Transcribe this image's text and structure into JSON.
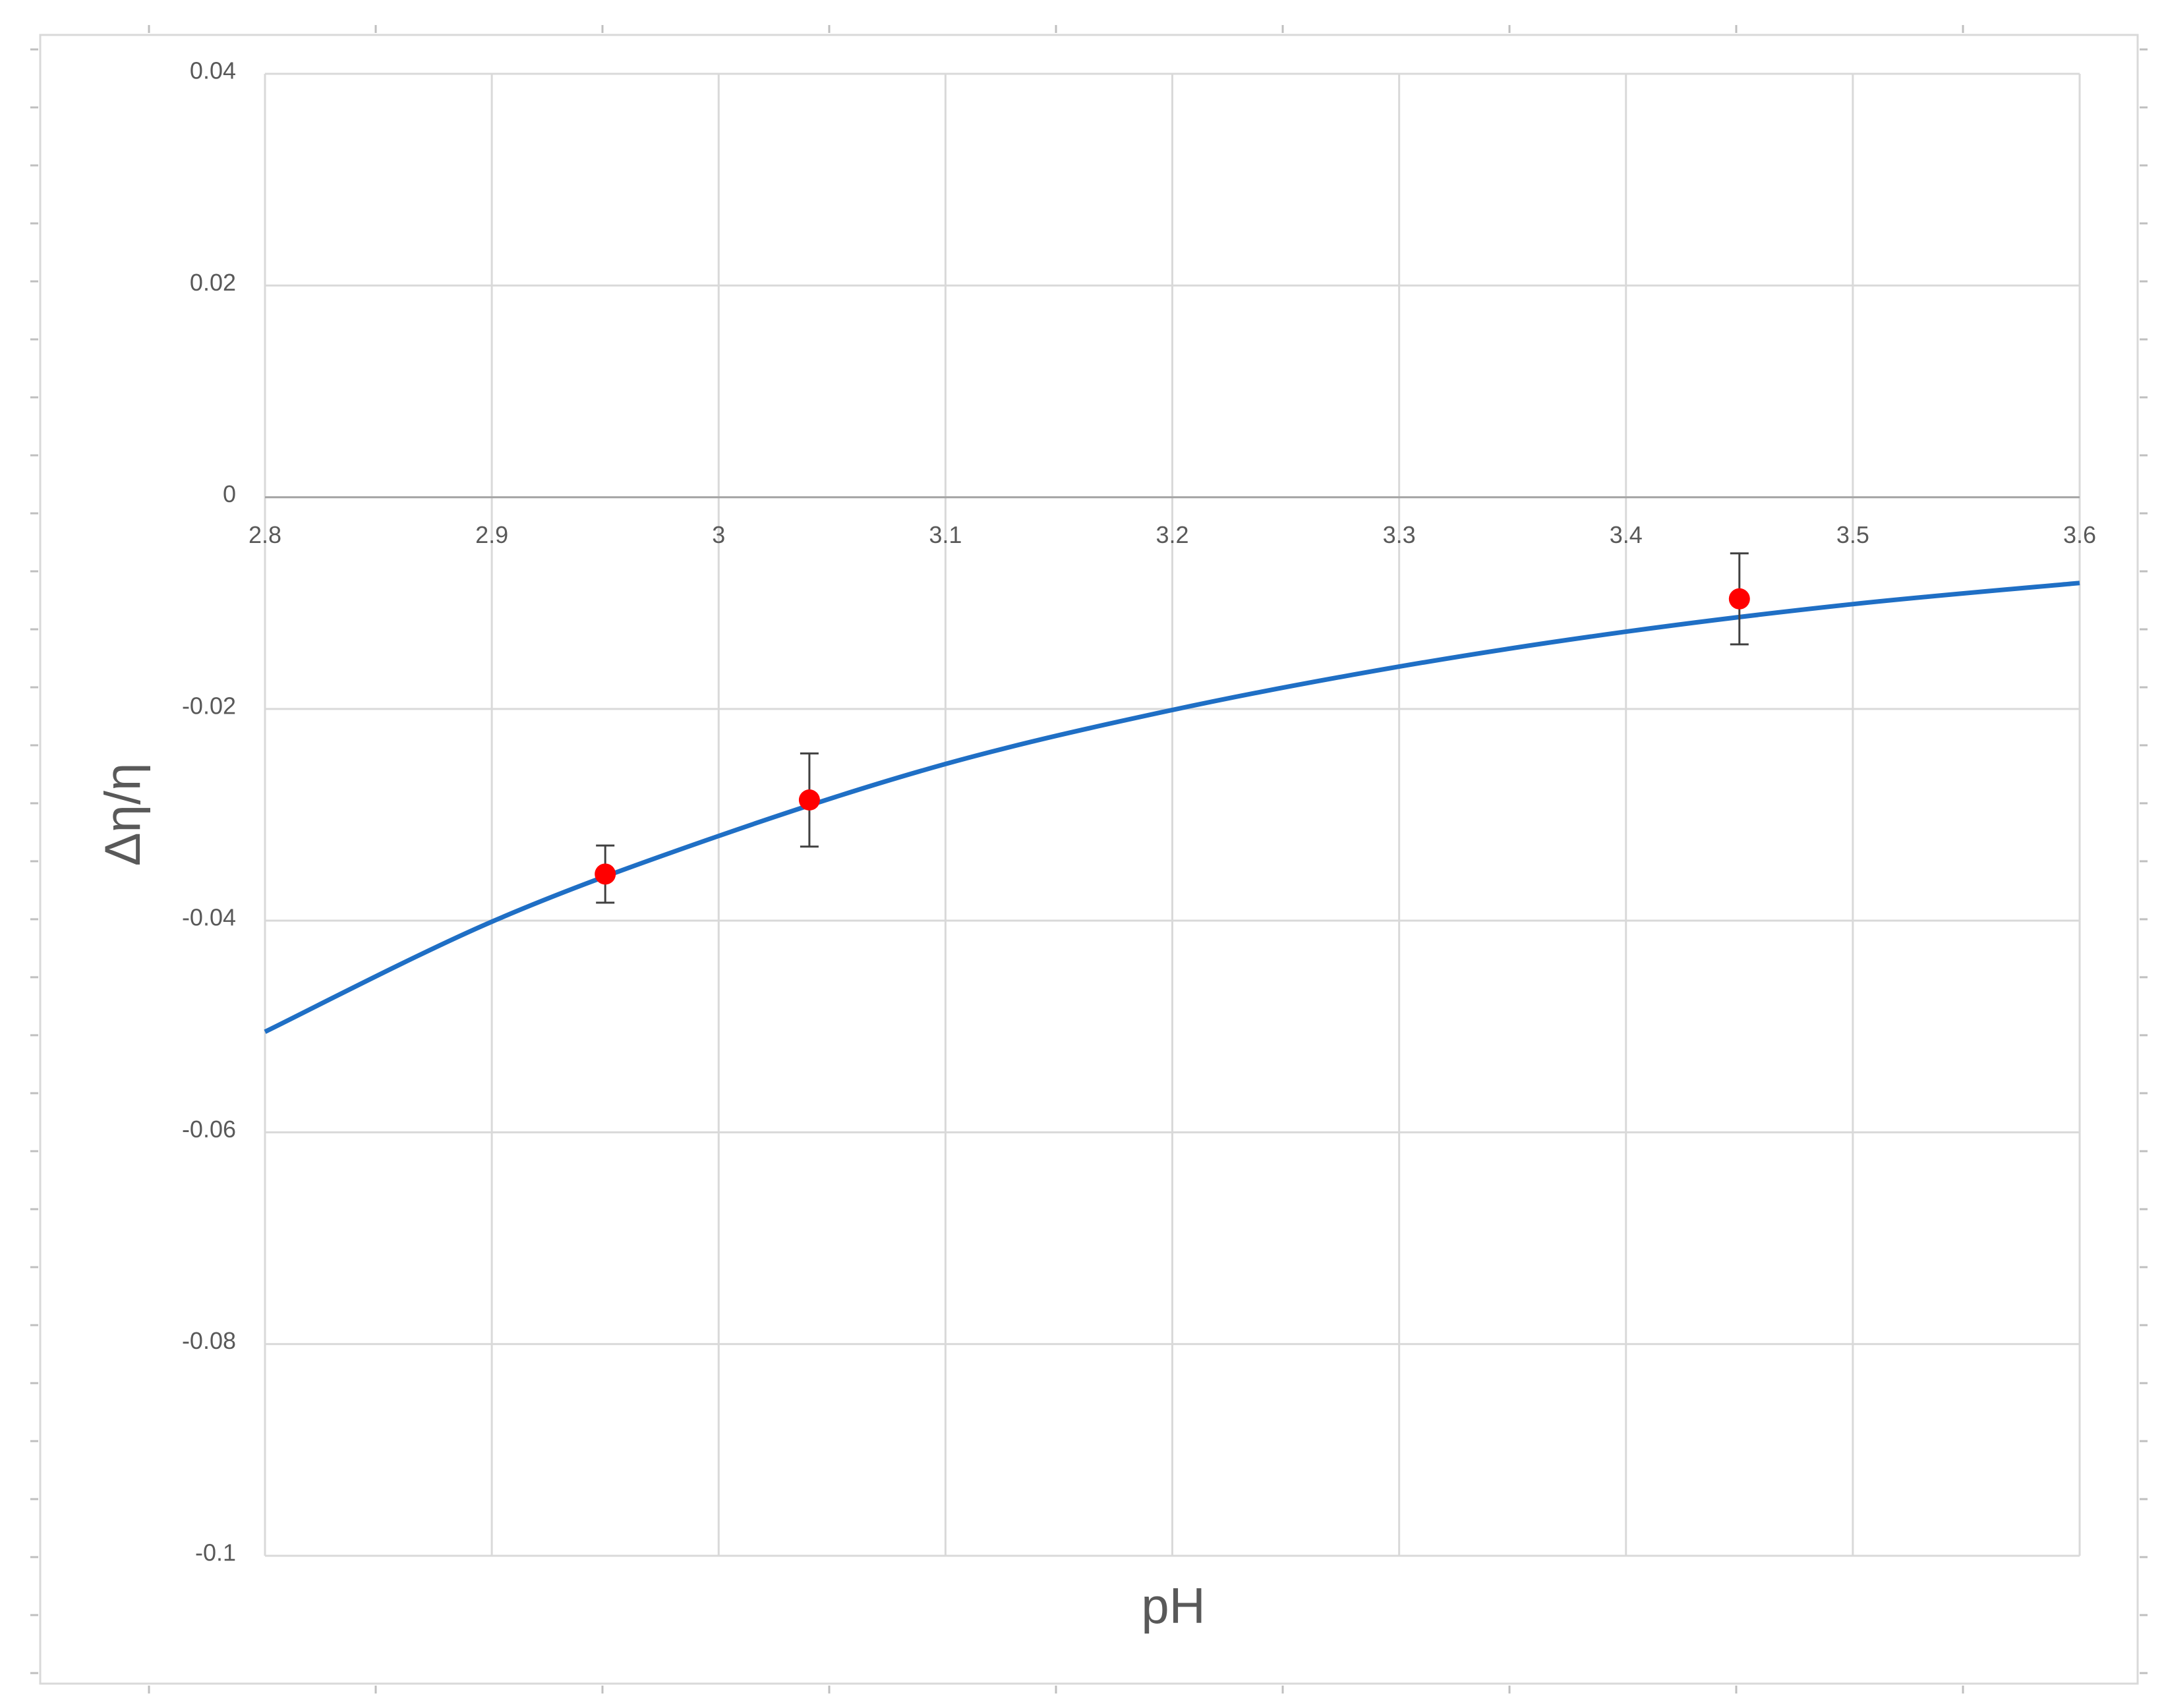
{
  "chart_data": {
    "type": "scatter",
    "x_label": "pH",
    "y_label": "Δη/η",
    "xlim": [
      2.8,
      3.6
    ],
    "xticks": [
      2.8,
      2.9,
      3,
      3.1,
      3.2,
      3.3,
      3.4,
      3.5,
      3.6
    ],
    "ylim": [
      -0.1,
      0.04
    ],
    "yticks": [
      0.04,
      0.02,
      0,
      -0.02,
      -0.04,
      -0.06,
      -0.08,
      -0.1
    ],
    "grid": true,
    "series": [
      {
        "mode": "line",
        "color": "#1f6fc5",
        "x": [
          2.8,
          2.9,
          3,
          3.1,
          3.2,
          3.3,
          3.4,
          3.5,
          3.6
        ],
        "values": [
          -0.0505,
          -0.0401,
          -0.032,
          -0.0252,
          -0.0201,
          -0.016,
          -0.0127,
          -0.0101,
          -0.0081
        ]
      },
      {
        "mode": "markers",
        "color": "#ff0000",
        "x": [
          2.95,
          3.04,
          3.45
        ],
        "values": [
          -0.0356,
          -0.0286,
          -0.0096
        ],
        "errors": [
          0.0027,
          0.0044,
          0.0043
        ]
      }
    ]
  }
}
